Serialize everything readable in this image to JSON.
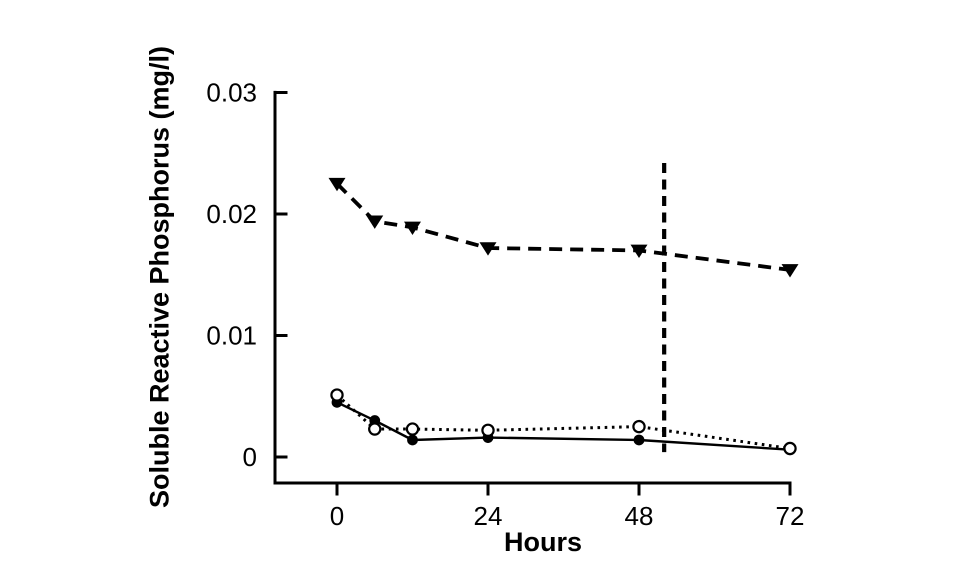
{
  "figure": {
    "background": "#ffffff",
    "ink_color": "#000000"
  },
  "chart_data": {
    "type": "line",
    "title": "",
    "xlabel": "Hours",
    "ylabel": "Soluble Reactive Phosphorus (mg/l)",
    "x": [
      0,
      6,
      12,
      24,
      48,
      72
    ],
    "xlim": [
      0,
      72
    ],
    "ylim": [
      0,
      0.03
    ],
    "xticks": [
      0,
      24,
      48,
      72
    ],
    "xtick_labels": [
      "0",
      "24",
      "48",
      "72"
    ],
    "yticks": [
      0,
      0.01,
      0.02,
      0.03
    ],
    "ytick_labels": [
      "0",
      "0.01",
      "0.02",
      "0.03"
    ],
    "grid": false,
    "legend": "none",
    "series": [
      {
        "name": "filled-triangle-dashed-series",
        "marker": "triangle-down-filled",
        "line_style": "dashed",
        "values": [
          0.0225,
          0.0194,
          0.0189,
          0.0172,
          0.017,
          0.0154
        ]
      },
      {
        "name": "filled-circle-solid-series",
        "marker": "circle-filled",
        "line_style": "solid",
        "values": [
          0.0045,
          0.003,
          0.0014,
          0.0016,
          0.0014,
          0.0006
        ]
      },
      {
        "name": "open-circle-dotted-series",
        "marker": "circle-open",
        "line_style": "dotted",
        "values": [
          0.0051,
          0.0023,
          0.0023,
          0.0022,
          0.0025,
          0.0007
        ]
      }
    ],
    "annotations": [
      {
        "type": "vline",
        "style": "dashed",
        "x": 52,
        "y_from": 0.0004,
        "y_to": 0.0242
      }
    ]
  }
}
